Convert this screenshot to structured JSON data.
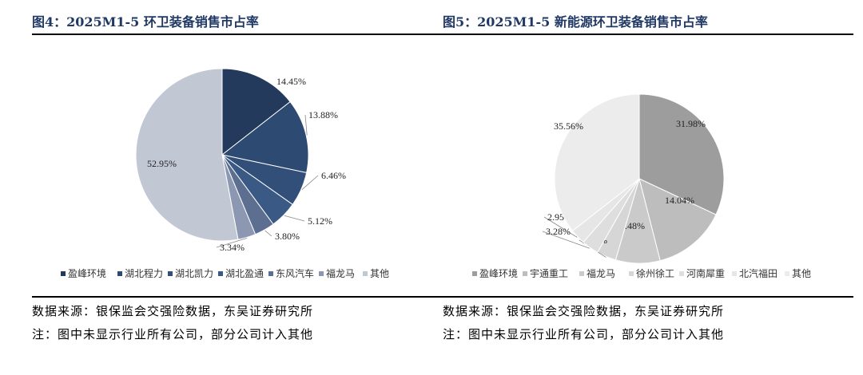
{
  "source_text": "数据来源：银保监会交强险数据，东吴证券研究所",
  "note_text": "注：图中未显示行业所有公司，部分公司计入其他",
  "chart_data": [
    {
      "type": "pie",
      "title": "图4：2025M1-5 环卫装备销售市占率",
      "categories": [
        "盈峰环境",
        "湖北程力",
        "湖北凯力",
        "湖北盈通",
        "东风汽车",
        "福龙马",
        "其他"
      ],
      "values": [
        14.45,
        13.88,
        6.46,
        5.12,
        3.8,
        3.34,
        52.95
      ],
      "value_labels": [
        "14.45%",
        "13.88%",
        "6.46%",
        "5.12%",
        "3.80%",
        "3.34%",
        "52.95%"
      ],
      "colors": [
        "#243a5c",
        "#2c4a72",
        "#314f79",
        "#3a5a85",
        "#5c6f91",
        "#8c98b2",
        "#c2c7d4"
      ],
      "legend_position": "bottom"
    },
    {
      "type": "pie",
      "title": "图5：2025M1-5 新能源环卫装备销售市占率",
      "categories": [
        "盈峰环境",
        "宇通重工",
        "福龙马",
        "徐州徐工",
        "河南犀重",
        "北汽福田",
        "其他"
      ],
      "values": [
        31.98,
        14.04,
        8.48,
        3.7,
        3.28,
        2.95,
        35.56
      ],
      "value_labels": [
        "31.98%",
        "14.04%",
        "8.48%",
        "3.70%",
        "3.28%",
        "2.95%",
        "35.56%"
      ],
      "colors": [
        "#9d9d9d",
        "#bdbdbd",
        "#cacaca",
        "#d6d6d6",
        "#dedede",
        "#e6e6e6",
        "#ececec"
      ],
      "legend_position": "bottom"
    }
  ]
}
